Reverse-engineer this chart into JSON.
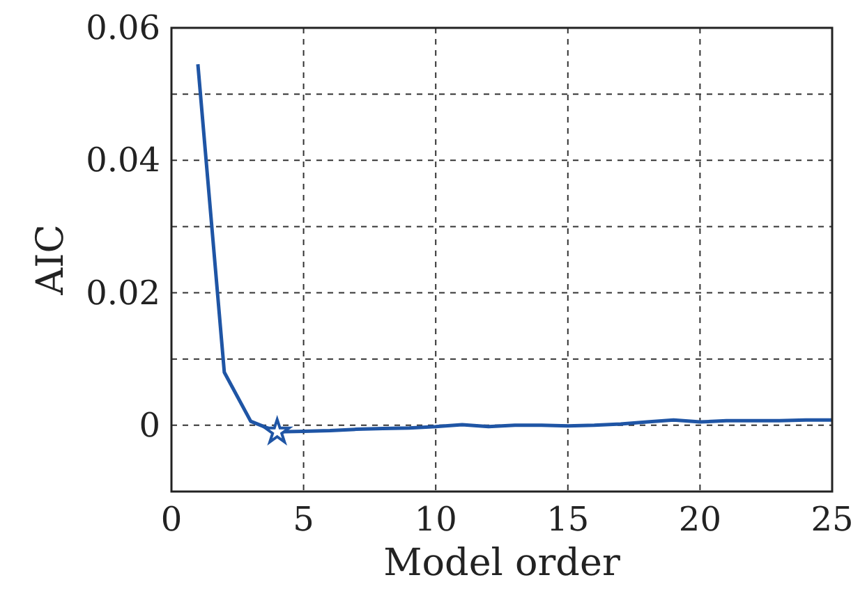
{
  "chart_data": {
    "type": "line",
    "xlabel": "Model order",
    "ylabel": "AIC",
    "xlim": [
      0,
      25
    ],
    "xticks": [
      0,
      5,
      10,
      15,
      20,
      25
    ],
    "ylim": [
      -0.01,
      0.06
    ],
    "yticks": [
      {
        "value": -0.01,
        "label": null
      },
      0,
      {
        "value": 0.01,
        "label": null
      },
      0.02,
      {
        "value": 0.03,
        "label": null
      },
      0.04,
      {
        "value": 0.05,
        "label": null
      },
      0.06
    ],
    "grid": true,
    "line_style": "solid",
    "series": [
      {
        "color": "#1f55a5",
        "marker": "none",
        "x": [
          1,
          2,
          3,
          4,
          5,
          6,
          7,
          8,
          9,
          10,
          11,
          12,
          13,
          14,
          15,
          16,
          17,
          18,
          19,
          20,
          21,
          22,
          23,
          24,
          25
        ],
        "values": [
          0.0545,
          0.008,
          0.0006,
          -0.001,
          -0.0009,
          -0.0008,
          -0.0006,
          -0.0005,
          -0.0004,
          -0.0002,
          0.0001,
          -0.0002,
          0,
          0,
          -0.0001,
          0,
          0.0002,
          0.0005,
          0.0008,
          0.0005,
          0.0007,
          0.0007,
          0.0007,
          0.0008,
          0.0008
        ]
      },
      {
        "type": "scatter",
        "color": "#1f55a5",
        "marker": "star",
        "x": [
          4
        ],
        "values": [
          -0.001
        ]
      }
    ]
  }
}
